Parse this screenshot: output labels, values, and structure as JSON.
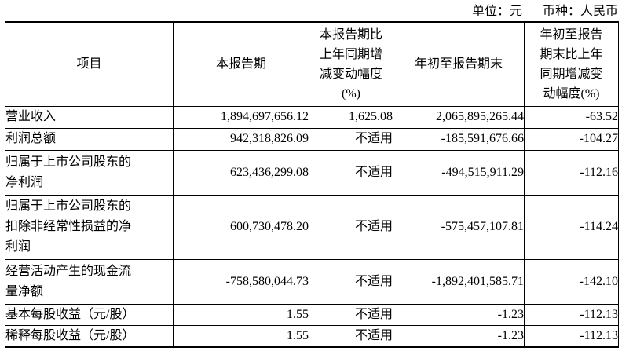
{
  "meta": {
    "unit_label": "单位：元",
    "currency_label": "币种：人民币"
  },
  "table": {
    "headers": {
      "item": "项目",
      "current_period": "本报告期",
      "current_change": "本报告期比\n上年同期增\n减变动幅度\n(%)",
      "ytd": "年初至报告期末",
      "ytd_change": "年初至报告\n期末比上年\n同期增减变\n动幅度(%)"
    },
    "rows": [
      {
        "item": "营业收入",
        "current_period": "1,894,697,656.12",
        "current_change": "1,625.08",
        "ytd": "2,065,895,265.44",
        "ytd_change": "-63.52"
      },
      {
        "item": "利润总额",
        "current_period": "942,318,826.09",
        "current_change": "不适用",
        "ytd": "-185,591,676.66",
        "ytd_change": "-104.27"
      },
      {
        "item": "归属于上市公司股东的\n净利润",
        "current_period": "623,436,299.08",
        "current_change": "不适用",
        "ytd": "-494,515,911.29",
        "ytd_change": "-112.16"
      },
      {
        "item": "归属于上市公司股东的\n扣除非经常性损益的净\n利润",
        "current_period": "600,730,478.20",
        "current_change": "不适用",
        "ytd": "-575,457,107.81",
        "ytd_change": "-114.24"
      },
      {
        "item": "经营活动产生的现金流\n量净额",
        "current_period": "-758,580,044.73",
        "current_change": "不适用",
        "ytd": "-1,892,401,585.71",
        "ytd_change": "-142.10"
      },
      {
        "item": "基本每股收益（元/股）",
        "current_period": "1.55",
        "current_change": "不适用",
        "ytd": "-1.23",
        "ytd_change": "-112.13"
      },
      {
        "item": "稀释每股收益（元/股）",
        "current_period": "1.55",
        "current_change": "不适用",
        "ytd": "-1.23",
        "ytd_change": "-112.13"
      }
    ]
  }
}
